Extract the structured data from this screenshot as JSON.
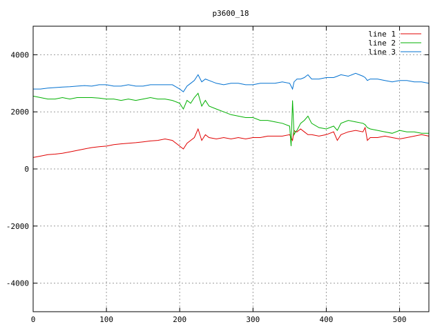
{
  "chart_data": {
    "type": "line",
    "title": "p3600_18",
    "xlabel": "",
    "ylabel": "",
    "xlim": [
      0,
      540
    ],
    "ylim": [
      -5000,
      5000
    ],
    "xticks": [
      0,
      100,
      200,
      300,
      400,
      500
    ],
    "yticks": [
      -4000,
      -2000,
      0,
      2000,
      4000
    ],
    "grid": true,
    "legend_position": "top-right",
    "x": [
      0,
      10,
      20,
      30,
      40,
      50,
      60,
      70,
      80,
      90,
      100,
      110,
      120,
      130,
      140,
      150,
      160,
      170,
      180,
      190,
      200,
      205,
      210,
      215,
      220,
      225,
      230,
      235,
      240,
      250,
      260,
      270,
      280,
      290,
      300,
      310,
      320,
      330,
      340,
      350,
      352,
      354,
      356,
      358,
      360,
      365,
      370,
      375,
      380,
      390,
      400,
      410,
      415,
      420,
      430,
      440,
      450,
      453,
      456,
      460,
      470,
      480,
      490,
      500,
      510,
      520,
      530,
      540
    ],
    "series": [
      {
        "name": "line 1",
        "color": "#e00000",
        "values": [
          400,
          450,
          500,
          520,
          550,
          600,
          650,
          700,
          750,
          780,
          800,
          850,
          880,
          900,
          920,
          950,
          980,
          1000,
          1050,
          1000,
          800,
          700,
          900,
          1000,
          1100,
          1400,
          1000,
          1200,
          1100,
          1050,
          1100,
          1050,
          1100,
          1050,
          1100,
          1100,
          1150,
          1150,
          1150,
          1200,
          1100,
          1000,
          1350,
          1300,
          1300,
          1400,
          1300,
          1200,
          1200,
          1150,
          1200,
          1300,
          1000,
          1200,
          1300,
          1350,
          1300,
          1450,
          1000,
          1100,
          1100,
          1150,
          1100,
          1050,
          1100,
          1150,
          1200,
          1150
        ]
      },
      {
        "name": "line 2",
        "color": "#00b000",
        "values": [
          2550,
          2500,
          2450,
          2450,
          2500,
          2450,
          2500,
          2500,
          2500,
          2480,
          2450,
          2450,
          2400,
          2450,
          2400,
          2450,
          2500,
          2450,
          2450,
          2400,
          2300,
          2100,
          2400,
          2300,
          2500,
          2650,
          2200,
          2400,
          2200,
          2100,
          2000,
          1900,
          1850,
          1800,
          1800,
          1700,
          1700,
          1650,
          1600,
          1500,
          800,
          2400,
          1200,
          1300,
          1350,
          1600,
          1700,
          1850,
          1600,
          1450,
          1400,
          1500,
          1350,
          1600,
          1700,
          1650,
          1600,
          1550,
          1450,
          1400,
          1350,
          1300,
          1250,
          1350,
          1300,
          1300,
          1250,
          1250
        ]
      },
      {
        "name": "line 3",
        "color": "#0070d0",
        "values": [
          2800,
          2800,
          2830,
          2850,
          2870,
          2880,
          2900,
          2920,
          2900,
          2950,
          2950,
          2900,
          2900,
          2950,
          2900,
          2900,
          2950,
          2950,
          2950,
          2950,
          2800,
          2700,
          2900,
          3000,
          3100,
          3300,
          3050,
          3150,
          3100,
          3000,
          2950,
          3000,
          3000,
          2950,
          2950,
          3000,
          3000,
          3000,
          3050,
          3000,
          2900,
          2800,
          3050,
          3100,
          3150,
          3150,
          3200,
          3300,
          3150,
          3150,
          3200,
          3200,
          3250,
          3300,
          3250,
          3350,
          3250,
          3200,
          3100,
          3150,
          3150,
          3100,
          3050,
          3100,
          3100,
          3050,
          3050,
          3000
        ]
      }
    ]
  }
}
